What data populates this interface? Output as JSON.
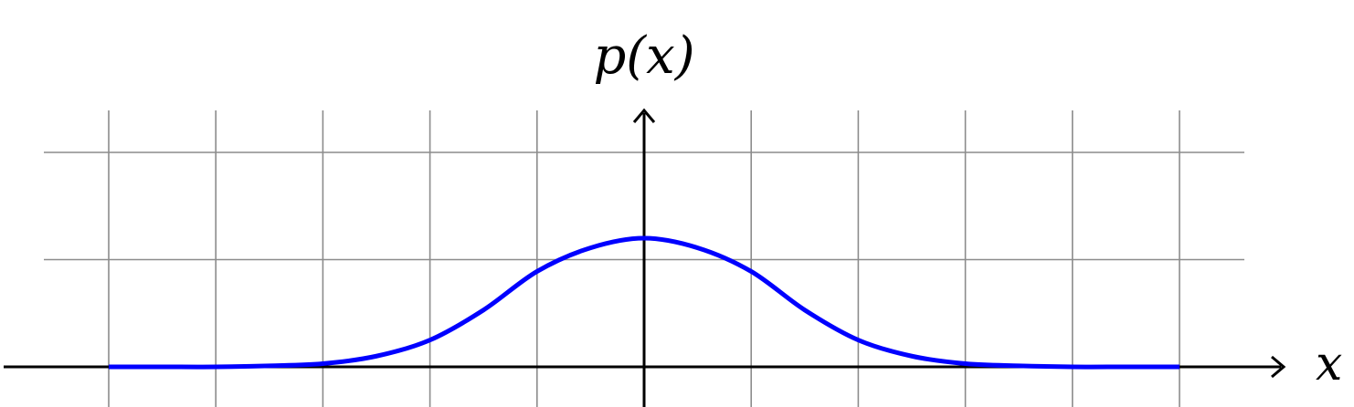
{
  "chart_data": {
    "type": "line",
    "title": "",
    "xlabel": "x",
    "ylabel": "p(x)",
    "xlim": [
      -6,
      6
    ],
    "ylim": [
      -0.3,
      2.4
    ],
    "grid": true,
    "grid_x_step": 1,
    "grid_y_step": 1,
    "series": [
      {
        "color": "#0000ff",
        "x": [
          -5,
          -4.5,
          -4,
          -3.5,
          -3,
          -2.5,
          -2,
          -1.5,
          -1,
          -0.5,
          0,
          0.5,
          1,
          1.5,
          2,
          2.5,
          3,
          3.5,
          4,
          4.5,
          5
        ],
        "y": [
          0.0,
          0.0,
          0.0,
          0.01,
          0.03,
          0.1,
          0.25,
          0.53,
          0.89,
          1.11,
          1.2,
          1.11,
          0.89,
          0.53,
          0.25,
          0.1,
          0.03,
          0.01,
          0.0,
          0.0,
          0.0
        ]
      }
    ]
  },
  "colors": {
    "curve": "#0000ff",
    "grid": "#8c8c8c",
    "axes": "#000000"
  }
}
